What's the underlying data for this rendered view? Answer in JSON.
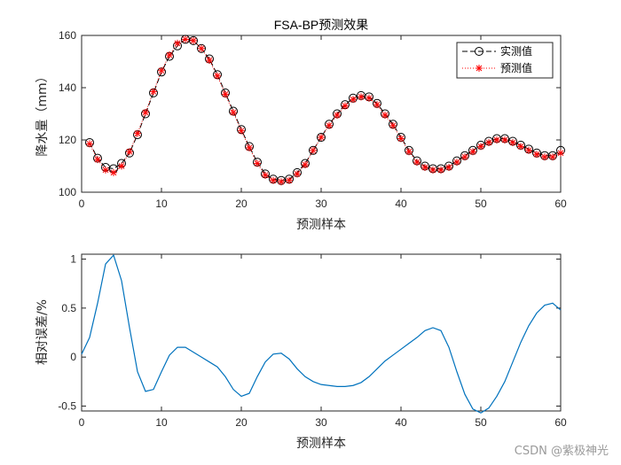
{
  "chart_data": [
    {
      "type": "line",
      "title": "FSA-BP预测效果",
      "xlabel": "预测样本",
      "ylabel": "降水量（mm）",
      "xlim": [
        0,
        60
      ],
      "ylim": [
        100,
        160
      ],
      "xticks": [
        0,
        10,
        20,
        30,
        40,
        50,
        60
      ],
      "yticks": [
        100,
        120,
        140,
        160
      ],
      "grid": false,
      "legend_position": "top-right",
      "x": [
        1,
        2,
        3,
        4,
        5,
        6,
        7,
        8,
        9,
        10,
        11,
        12,
        13,
        14,
        15,
        16,
        17,
        18,
        19,
        20,
        21,
        22,
        23,
        24,
        25,
        26,
        27,
        28,
        29,
        30,
        31,
        32,
        33,
        34,
        35,
        36,
        37,
        38,
        39,
        40,
        41,
        42,
        43,
        44,
        45,
        46,
        47,
        48,
        49,
        50,
        51,
        52,
        53,
        54,
        55,
        56,
        57,
        58,
        59,
        60
      ],
      "series": [
        {
          "name": "实测值",
          "style": "black dashed line with circle markers",
          "color": "#000000",
          "values": [
            119,
            113,
            109.5,
            109,
            111,
            115,
            122,
            130,
            138,
            146,
            152,
            156,
            158.5,
            158,
            155,
            151,
            145,
            138,
            131,
            124,
            117.5,
            111.5,
            107,
            105,
            104.5,
            105,
            107.5,
            111,
            116,
            121,
            126,
            130,
            133.5,
            136,
            137,
            136.5,
            134,
            130,
            126,
            121,
            116,
            112,
            110,
            109,
            109,
            110,
            112,
            114,
            116,
            118,
            119.5,
            120.5,
            120.5,
            119.5,
            118,
            116.5,
            115,
            114,
            114,
            116
          ]
        },
        {
          "name": "预测值",
          "style": "red dotted line with asterisk markers",
          "color": "#ff0000",
          "values": [
            118.5,
            112.5,
            108.5,
            107.5,
            110,
            115.5,
            122.5,
            130.5,
            138.5,
            146.5,
            152.5,
            157,
            158.5,
            158,
            155,
            150.5,
            144.5,
            137.5,
            130.5,
            123.5,
            117,
            111,
            106.5,
            104.5,
            104,
            104.5,
            107,
            110.5,
            116,
            121,
            125.5,
            129.5,
            133,
            135.5,
            136.5,
            136,
            133.5,
            129.5,
            125.5,
            120.5,
            115.5,
            111.5,
            109.5,
            108.5,
            108.5,
            109.5,
            111.5,
            113.5,
            115.5,
            117.5,
            119,
            120,
            120,
            119,
            117.5,
            116,
            114.5,
            113.5,
            113.5,
            115
          ]
        }
      ]
    },
    {
      "type": "line",
      "title": "",
      "xlabel": "预测样本",
      "ylabel": "相对误差/%",
      "xlim": [
        0,
        60
      ],
      "ylim": [
        -0.55,
        1.05
      ],
      "xticks": [
        0,
        10,
        20,
        30,
        40,
        50,
        60
      ],
      "yticks": [
        -0.5,
        0,
        0.5,
        1
      ],
      "ytick_labels": [
        "-0.5",
        "0",
        "0.5",
        "1"
      ],
      "grid": false,
      "series": [
        {
          "color": "#0072bd",
          "values": [
            0.03,
            0.2,
            0.55,
            0.95,
            1.04,
            0.78,
            0.3,
            -0.15,
            -0.35,
            -0.33,
            -0.15,
            0.02,
            0.1,
            0.1,
            0.05,
            0,
            -0.05,
            -0.1,
            -0.2,
            -0.33,
            -0.4,
            -0.37,
            -0.2,
            -0.05,
            0.03,
            0.04,
            -0.02,
            -0.12,
            -0.2,
            -0.25,
            -0.28,
            -0.29,
            -0.3,
            -0.3,
            -0.29,
            -0.26,
            -0.2,
            -0.12,
            -0.04,
            0.02,
            0.08,
            0.14,
            0.2,
            0.27,
            0.3,
            0.27,
            0.1,
            -0.15,
            -0.38,
            -0.53,
            -0.57,
            -0.52,
            -0.4,
            -0.25,
            -0.05,
            0.15,
            0.32,
            0.45,
            0.53,
            0.55,
            0.48
          ]
        }
      ]
    }
  ],
  "watermark": "CSDN @紫极神光"
}
